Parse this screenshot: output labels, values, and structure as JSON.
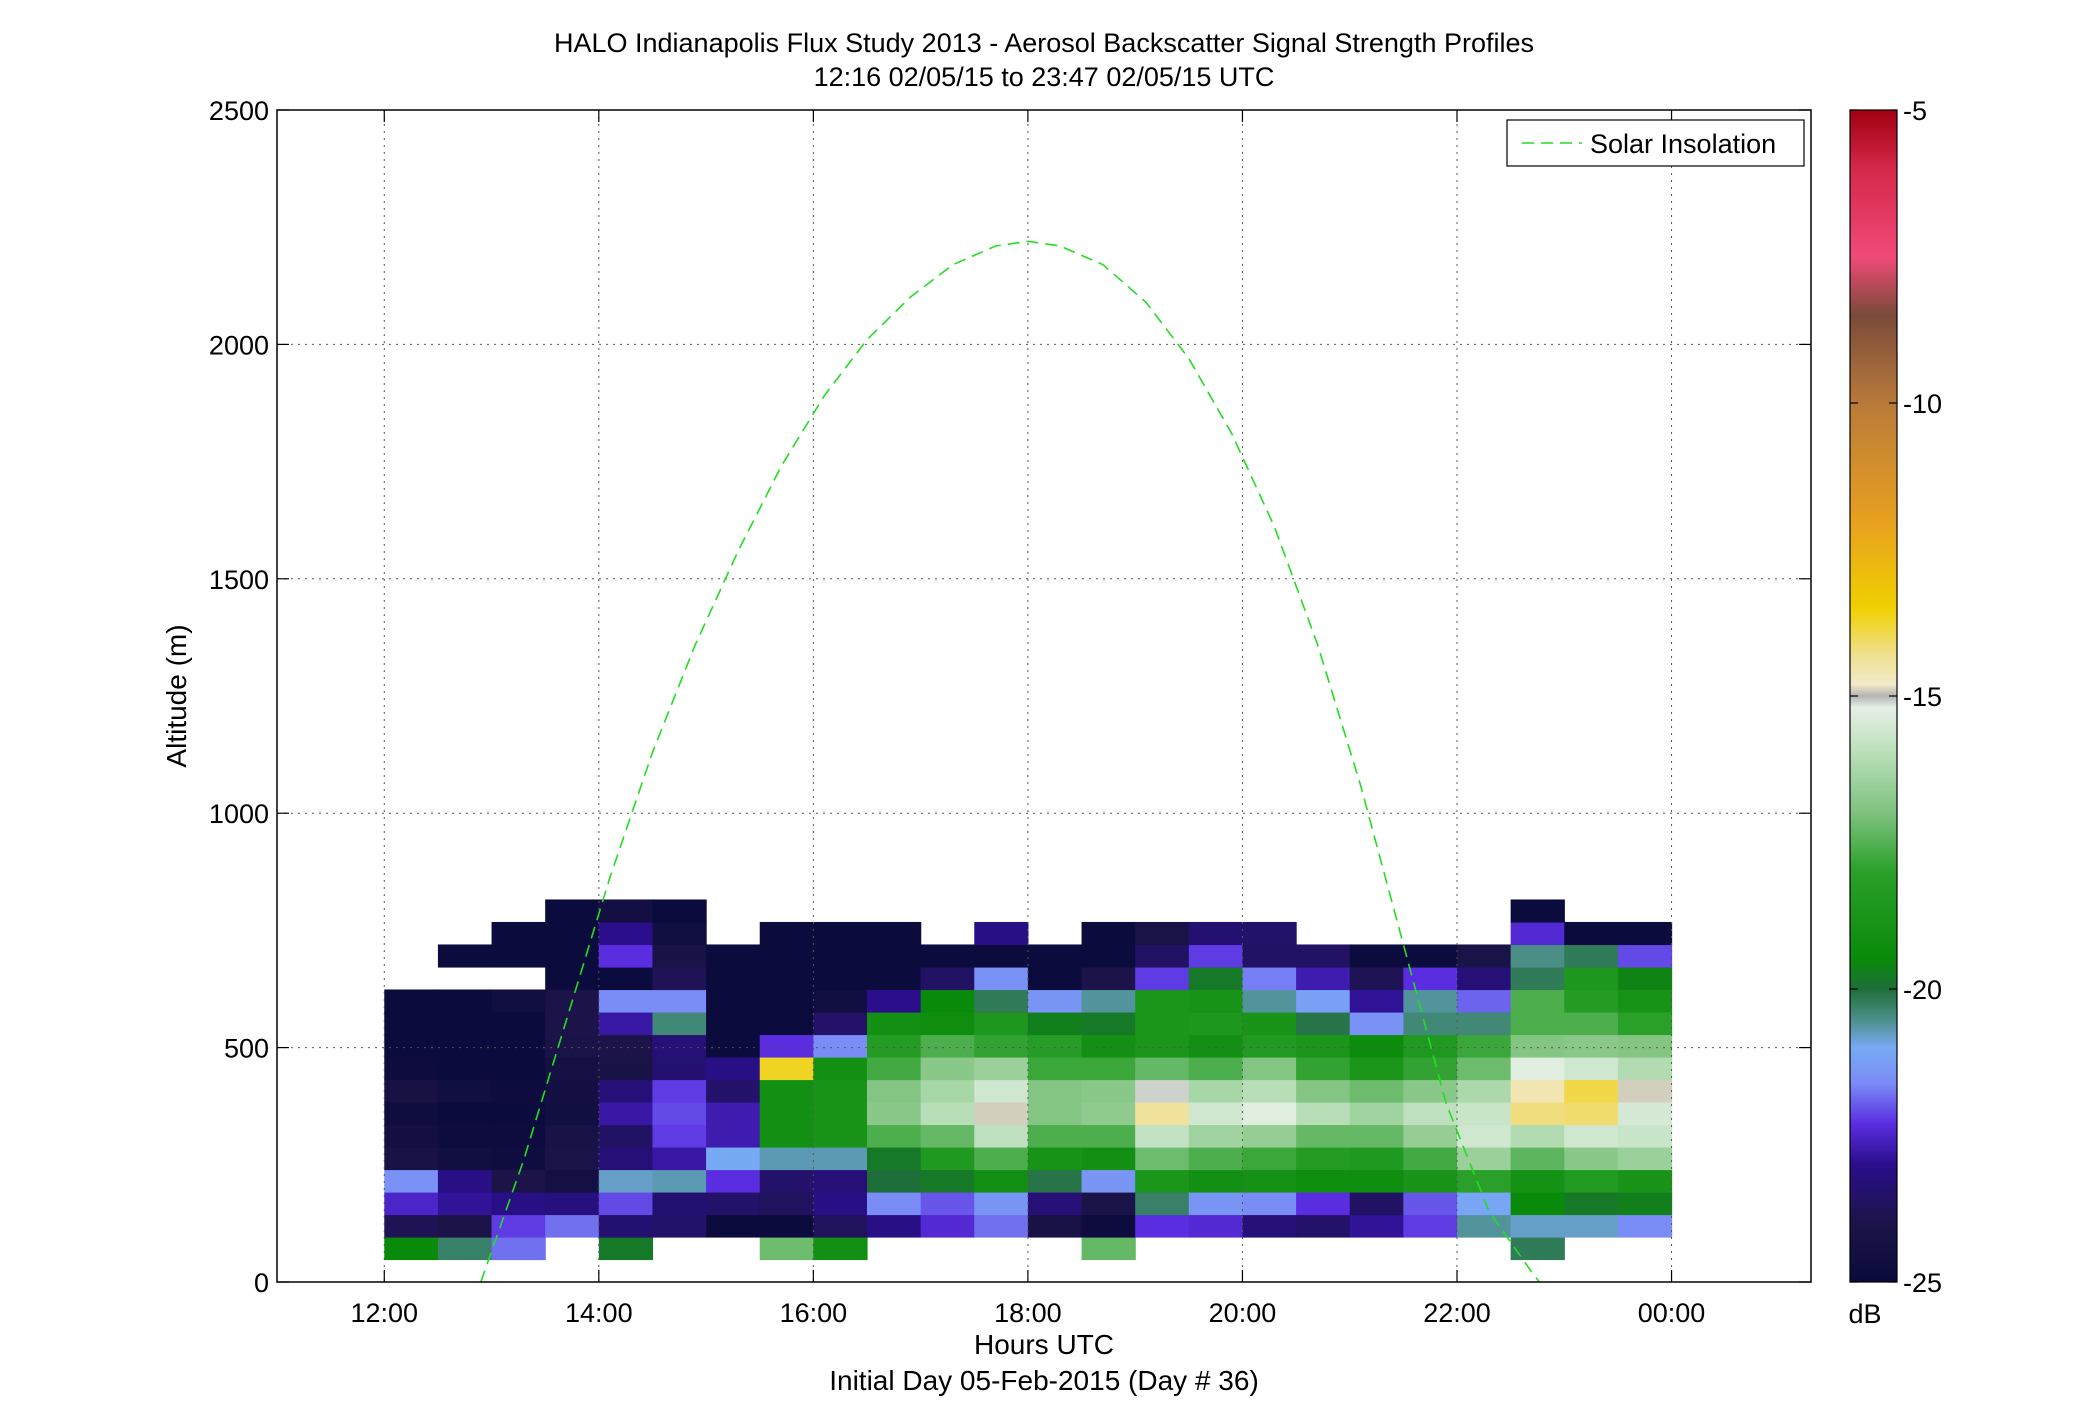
{
  "chart_data": {
    "type": "heatmap",
    "title": "HALO Indianapolis Flux Study 2013 - Aerosol Backscatter Signal Strength Profiles",
    "subtitle": "12:16 02/05/15 to 23:47 02/05/15  UTC",
    "xlabel": "Hours UTC",
    "xlabel2": "Initial Day 05-Feb-2015 (Day # 36)",
    "ylabel": "Altitude (m)",
    "xlim": [
      11,
      25.3
    ],
    "ylim": [
      0,
      2500
    ],
    "x_tick_values": [
      12,
      14,
      16,
      18,
      20,
      22,
      24
    ],
    "x_tick_labels": [
      "12:00",
      "14:00",
      "16:00",
      "18:00",
      "20:00",
      "22:00",
      "00:00"
    ],
    "y_ticks": [
      0,
      500,
      1000,
      1500,
      2000,
      2500
    ],
    "grid": true,
    "colorbar": {
      "label": "dB",
      "range": [
        -25,
        -5
      ],
      "ticks": [
        -25,
        -20,
        -15,
        -10,
        -5
      ]
    },
    "legend": {
      "position": "top-right",
      "entries": [
        "Solar Insolation"
      ]
    },
    "solar_insolation": {
      "color": "#22dd22",
      "style": "dashed",
      "x": [
        12.9,
        13.3,
        13.7,
        14.1,
        14.5,
        14.9,
        15.3,
        15.7,
        16.1,
        16.5,
        16.9,
        17.3,
        17.7,
        18.0,
        18.3,
        18.7,
        19.1,
        19.5,
        19.9,
        20.3,
        20.7,
        21.1,
        21.5,
        21.9,
        22.3,
        22.7,
        23.1
      ],
      "y": [
        0,
        260,
        560,
        860,
        1130,
        1360,
        1560,
        1740,
        1890,
        2010,
        2100,
        2170,
        2210,
        2220,
        2210,
        2170,
        2090,
        1970,
        1810,
        1610,
        1360,
        1060,
        720,
        380,
        150,
        20,
        -100
      ]
    },
    "cell_time_width_h": 0.5,
    "cell_altitude_height_m": 48,
    "altitude_bins_m": [
      72,
      120,
      168,
      216,
      264,
      312,
      360,
      408,
      456,
      504,
      552,
      600,
      648,
      696,
      744,
      792,
      840,
      888
    ],
    "columns": [
      {
        "t": 12.25,
        "alt0": 72,
        "v": [
          -19.5,
          -23.8,
          -22.5,
          -21.5,
          -24.2,
          -24.5,
          -24.7,
          -24.3,
          -24.8,
          -24.9,
          -24.9,
          -24.9
        ]
      },
      {
        "t": 12.75,
        "alt0": 72,
        "v": [
          -20.3,
          -24.0,
          -22.9,
          -23.1,
          -24.6,
          -24.8,
          -24.9,
          -24.6,
          -24.9,
          -24.9,
          -24.9,
          -24.9,
          null,
          -24.9
        ]
      },
      {
        "t": 13.25,
        "alt0": 72,
        "v": [
          -21.8,
          -22.2,
          -23.1,
          -24.0,
          -24.7,
          -24.8,
          -24.9,
          -24.8,
          -24.9,
          -24.9,
          -24.9,
          -24.6,
          null,
          -24.9,
          -24.9
        ]
      },
      {
        "t": 13.75,
        "alt0": 120,
        "v": [
          -21.8,
          -23.2,
          -24.4,
          -24.1,
          -24.2,
          -24.6,
          -24.5,
          -24.4,
          -24.1,
          -24.0,
          -24.0,
          -24.9,
          -24.9,
          -24.9,
          -24.9
        ]
      },
      {
        "t": 14.25,
        "alt0": 72,
        "v": [
          -19.8,
          -23.4,
          -22.1,
          -20.8,
          -23.3,
          -23.6,
          -22.8,
          -23.3,
          -24.2,
          -24.0,
          -22.8,
          -21.6,
          -24.9,
          -22.3,
          -23.0,
          -24.5
        ]
      },
      {
        "t": 14.75,
        "alt0": 120,
        "v": [
          -23.5,
          -23.4,
          -20.7,
          -22.8,
          -22.2,
          -22.1,
          -22.2,
          -23.4,
          -23.3,
          -20.4,
          -21.6,
          -23.8,
          -24.2,
          -24.6,
          -24.9
        ]
      },
      {
        "t": 15.25,
        "alt0": 120,
        "v": [
          -24.9,
          -23.5,
          -22.3,
          -21.0,
          -22.7,
          -22.7,
          -23.5,
          -23.1,
          -24.9,
          -24.9,
          -24.9,
          -24.9,
          -24.9
        ]
      },
      {
        "t": 15.75,
        "alt0": 72,
        "v": [
          -17.2,
          -24.9,
          -23.7,
          -23.5,
          -20.7,
          -19.1,
          -19.1,
          -19.1,
          -13.7,
          -22.3,
          -24.9,
          -24.9,
          -24.9,
          -24.9,
          -24.9
        ]
      },
      {
        "t": 16.25,
        "alt0": 72,
        "v": [
          -19.1,
          -23.7,
          -23.1,
          -23.3,
          -20.7,
          -18.8,
          -18.8,
          -18.8,
          -19.1,
          -21.6,
          -23.5,
          -24.6,
          -24.9,
          -24.9,
          -24.9
        ]
      },
      {
        "t": 16.75,
        "alt0": 120,
        "v": [
          -23.1,
          -21.6,
          -20.0,
          -19.8,
          -17.6,
          -16.8,
          -16.9,
          -17.7,
          -18.3,
          -19.1,
          -23.0,
          -24.9,
          -24.9,
          -24.9
        ]
      },
      {
        "t": 17.25,
        "alt0": 120,
        "v": [
          -22.4,
          -22.0,
          -19.8,
          -18.5,
          -17.3,
          -16.0,
          -16.3,
          -16.8,
          -17.6,
          -19.3,
          -19.5,
          -23.6,
          -24.9
        ]
      },
      {
        "t": 17.75,
        "alt0": 120,
        "v": [
          -21.8,
          -21.4,
          -19.1,
          -17.6,
          -15.9,
          -14.9,
          -15.6,
          -16.5,
          -17.9,
          -18.6,
          -20.2,
          -21.5,
          -24.9,
          -23.1
        ]
      },
      {
        "t": 18.25,
        "alt0": 120,
        "v": [
          -24.2,
          -23.3,
          -20.1,
          -18.9,
          -17.6,
          -16.9,
          -16.9,
          -17.8,
          -18.2,
          -19.7,
          -21.4,
          -24.9,
          -24.9
        ]
      },
      {
        "t": 18.75,
        "alt0": 72,
        "v": [
          -17.3,
          -24.8,
          -24.1,
          -21.4,
          -19.1,
          -17.6,
          -16.7,
          -16.8,
          -17.8,
          -19.1,
          -19.8,
          -20.6,
          -24.0,
          -24.9,
          -24.9
        ]
      },
      {
        "t": 19.25,
        "alt0": 120,
        "v": [
          -22.3,
          -20.3,
          -18.7,
          -17.2,
          -15.8,
          -14.4,
          -15.1,
          -17.3,
          -18.7,
          -18.7,
          -18.7,
          -22.2,
          -23.6,
          -24.1
        ]
      },
      {
        "t": 19.75,
        "alt0": 120,
        "v": [
          -22.4,
          -21.4,
          -19.1,
          -17.6,
          -16.4,
          -15.6,
          -16.3,
          -17.6,
          -19.1,
          -18.6,
          -18.9,
          -19.8,
          -22.2,
          -23.4
        ]
      },
      {
        "t": 20.25,
        "alt0": 120,
        "v": [
          -23.3,
          -21.6,
          -19.0,
          -17.8,
          -16.6,
          -15.3,
          -16.0,
          -16.9,
          -18.4,
          -18.8,
          -20.6,
          -21.7,
          -23.6,
          -23.5
        ]
      },
      {
        "t": 20.75,
        "alt0": 120,
        "v": [
          -23.5,
          -22.3,
          -19.3,
          -18.3,
          -17.3,
          -16.0,
          -16.9,
          -17.9,
          -18.7,
          -20.1,
          -21.2,
          -22.7,
          -23.6
        ]
      },
      {
        "t": 21.25,
        "alt0": 120,
        "v": [
          -22.9,
          -23.6,
          -19.3,
          -18.5,
          -17.3,
          -16.4,
          -17.2,
          -18.7,
          -19.4,
          -21.5,
          -22.9,
          -23.8,
          -24.9
        ]
      },
      {
        "t": 21.75,
        "alt0": 120,
        "v": [
          -22.2,
          -22.0,
          -18.8,
          -17.7,
          -16.6,
          -15.9,
          -16.8,
          -17.9,
          -18.5,
          -20.4,
          -20.6,
          -22.3,
          -24.9
        ]
      },
      {
        "t": 22.25,
        "alt0": 120,
        "v": [
          -20.6,
          -21.1,
          -18.0,
          -16.5,
          -15.6,
          -15.7,
          -16.2,
          -17.2,
          -17.8,
          -20.4,
          -21.9,
          -23.3,
          -24.1
        ]
      },
      {
        "t": 22.75,
        "alt0": 72,
        "v": [
          -20.2,
          -20.8,
          -19.5,
          -19.0,
          -17.4,
          -16.1,
          -14.2,
          -14.6,
          -15.3,
          -16.9,
          -17.6,
          -17.6,
          -20.2,
          -20.5,
          -22.4,
          -24.9
        ]
      },
      {
        "t": 23.25,
        "alt0": 120,
        "v": [
          -20.8,
          -19.8,
          -18.4,
          -16.8,
          -15.6,
          -14.1,
          -13.9,
          -15.6,
          -16.8,
          -17.6,
          -18.3,
          -18.6,
          -20.2,
          -24.9
        ]
      },
      {
        "t": 23.75,
        "alt0": 120,
        "v": [
          -21.6,
          -19.7,
          -18.8,
          -16.5,
          -15.7,
          -15.5,
          -14.9,
          -16.1,
          -16.9,
          -18.0,
          -18.9,
          -19.6,
          -22.1,
          -24.9
        ]
      }
    ]
  }
}
